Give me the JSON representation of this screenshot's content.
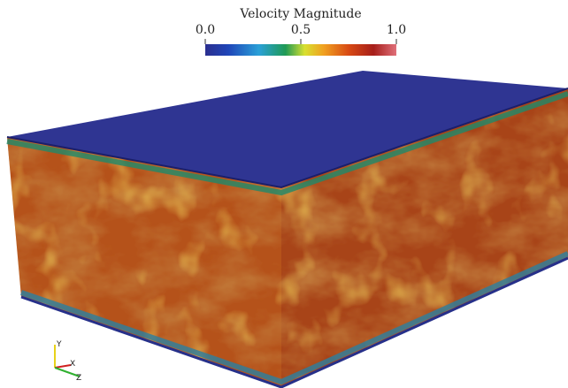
{
  "colorbar": {
    "title": "Velocity Magnitude",
    "ticks": [
      {
        "value": 0,
        "label": "0.0"
      },
      {
        "value": 0.5,
        "label": "0.5"
      },
      {
        "value": 1,
        "label": "1.0"
      }
    ]
  },
  "orientation_axes": {
    "y": "Y",
    "x": "X",
    "z": "Z"
  }
}
